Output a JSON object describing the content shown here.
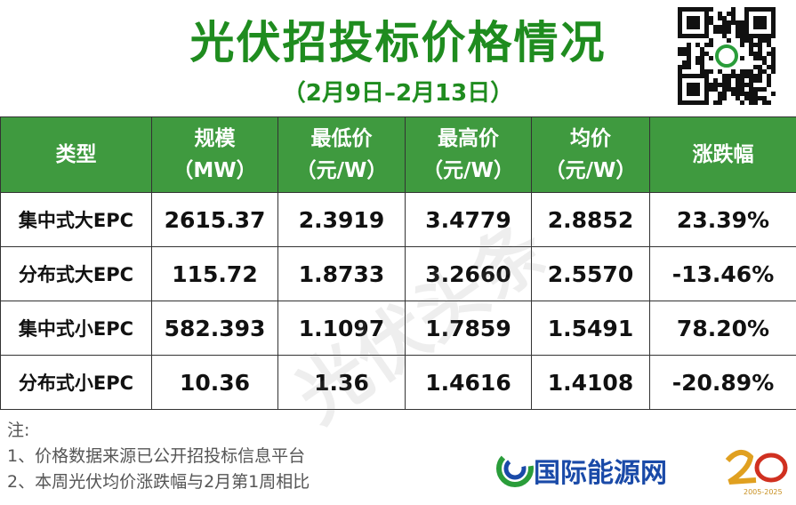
{
  "title": "光伏招投标价格情况",
  "subtitle": "（2月9日–2月13日）",
  "header": [
    [
      "类型"
    ],
    [
      "规模",
      "（MW）"
    ],
    [
      "最低价",
      "（元/W）"
    ],
    [
      "最高价",
      "（元/W）"
    ],
    [
      "均价",
      "（元/W）"
    ],
    [
      "涨跌幅"
    ]
  ],
  "rows": [
    [
      "集中式大EPC",
      "2615.37",
      "2.3919",
      "3.4779",
      "2.8852",
      "23.39%"
    ],
    [
      "分布式大EPC",
      "115.72",
      "1.8733",
      "3.2660",
      "2.5570",
      "-13.46%"
    ],
    [
      "集中式小EPC",
      "582.393",
      "1.1097",
      "1.7859",
      "1.5491",
      "78.20%"
    ],
    [
      "分布式小EPC",
      "10.36",
      "1.36",
      "1.4616",
      "1.4108",
      "-20.89%"
    ]
  ],
  "watermark": "光伏头条",
  "notes": {
    "heading": "注:",
    "items": [
      "1、价格数据来源已公开招投标信息平台",
      "2、本周光伏均价涨跌幅与2月第1周相比"
    ]
  },
  "brand": "国际能源网",
  "anniversary": "2005-2025"
}
